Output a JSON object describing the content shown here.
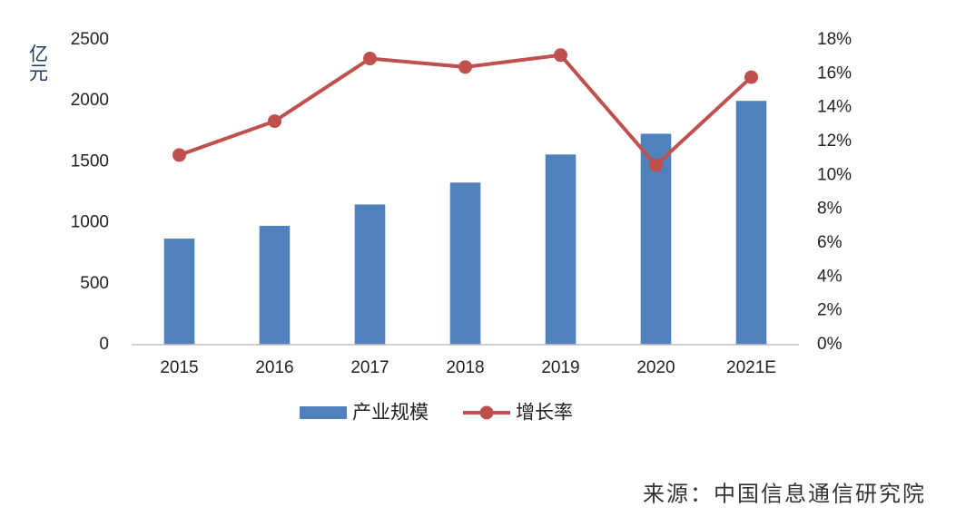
{
  "chart_data": {
    "type": "bar-line",
    "ylabel": "亿元",
    "source": "来源：中国信息通信研究院",
    "categories": [
      "2015",
      "2016",
      "2017",
      "2018",
      "2019",
      "2020",
      "2021E"
    ],
    "series": [
      {
        "name": "产业规模",
        "type": "bar",
        "color": "#4f81bd",
        "values": [
          870,
          975,
          1150,
          1330,
          1560,
          1730,
          2000
        ]
      },
      {
        "name": "增长率",
        "type": "line",
        "axis": "y2",
        "color": "#c0504d",
        "values": [
          11.2,
          13.2,
          16.9,
          16.4,
          17.1,
          10.6,
          15.8
        ]
      }
    ],
    "ylim": [
      0,
      2500
    ],
    "yticks": [
      0,
      500,
      1000,
      1500,
      2000,
      2500
    ],
    "y2lim": [
      0,
      18
    ],
    "y2ticks": [
      {
        "value": 0,
        "label": "0%"
      },
      {
        "value": 2,
        "label": "2%"
      },
      {
        "value": 4,
        "label": "4%"
      },
      {
        "value": 6,
        "label": "6%"
      },
      {
        "value": 8,
        "label": "8%"
      },
      {
        "value": 10,
        "label": "10%"
      },
      {
        "value": 12,
        "label": "12%"
      },
      {
        "value": 14,
        "label": "14%"
      },
      {
        "value": 16,
        "label": "16%"
      },
      {
        "value": 18,
        "label": "18%"
      }
    ],
    "grid": false
  }
}
